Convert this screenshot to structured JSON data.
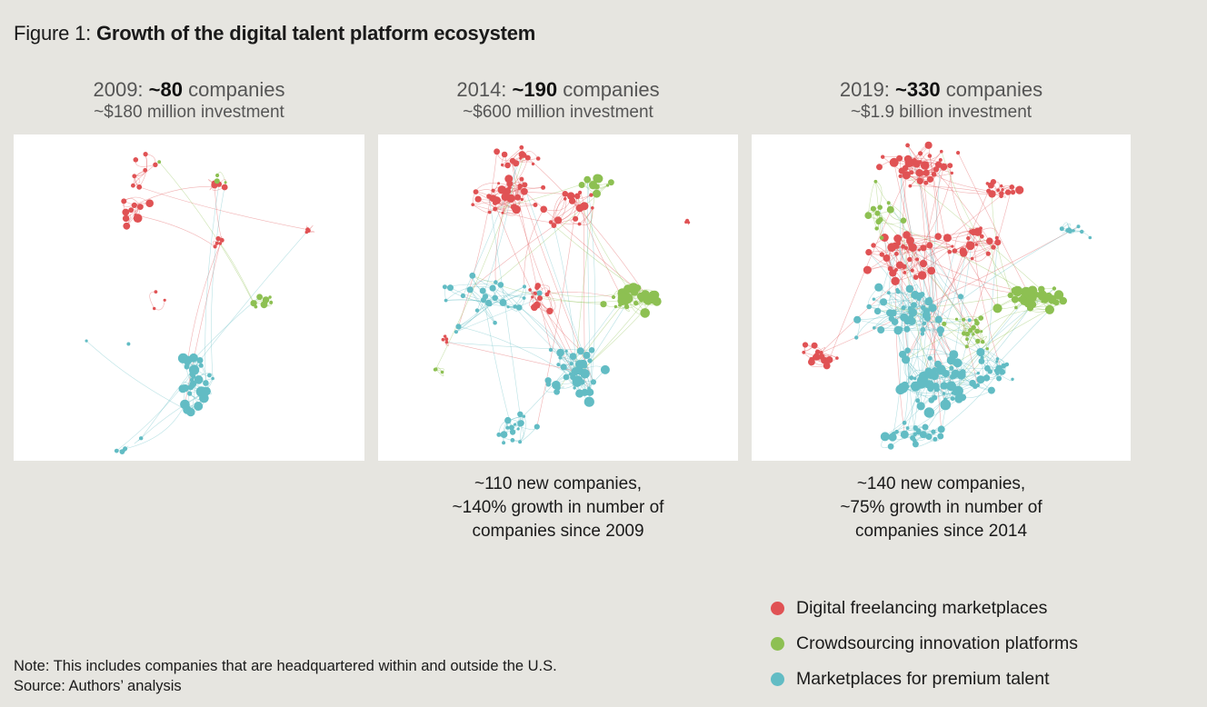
{
  "figure": {
    "label": "Figure 1:",
    "title": "Growth of the digital talent platform ecosystem"
  },
  "panels": [
    {
      "year": "2009:",
      "count": "~80",
      "count_suffix": "companies",
      "investment": "~$180 million investment",
      "growth_lines": []
    },
    {
      "year": "2014:",
      "count": "~190",
      "count_suffix": "companies",
      "investment": "~$600 million investment",
      "growth_lines": [
        "~110 new companies,",
        "~140% growth in number of",
        "companies since 2009"
      ]
    },
    {
      "year": "2019:",
      "count": "~330",
      "count_suffix": "companies",
      "investment": "~$1.9 billion investment",
      "growth_lines": [
        "~140 new companies,",
        "~75% growth in number of",
        "companies since 2014"
      ]
    }
  ],
  "legend": [
    {
      "label": "Digital freelancing marketplaces",
      "color": "#e05254"
    },
    {
      "label": "Crowdsourcing innovation platforms",
      "color": "#8dc052"
    },
    {
      "label": "Marketplaces for premium talent",
      "color": "#62bcc4"
    }
  ],
  "colors": {
    "freelancing": "#e05254",
    "crowdsourcing": "#8dc052",
    "premium": "#62bcc4",
    "background": "#e6e5e0"
  },
  "note": {
    "line1": "Note: This includes companies that are headquartered within and outside the U.S.",
    "line2": "Source: Authors’ analysis"
  }
}
